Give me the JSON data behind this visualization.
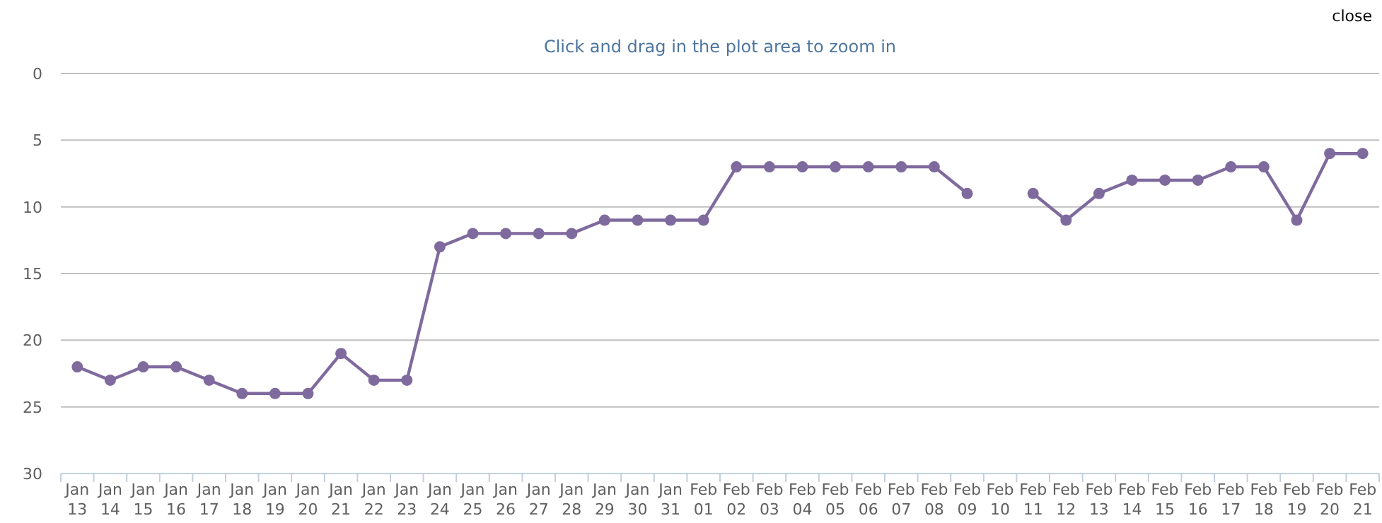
{
  "chart_data": {
    "type": "line",
    "subtitle": "Click and drag in the plot area to zoom in",
    "annotations": [
      "close"
    ],
    "categories": [
      "Jan 13",
      "Jan 14",
      "Jan 15",
      "Jan 16",
      "Jan 17",
      "Jan 18",
      "Jan 19",
      "Jan 20",
      "Jan 21",
      "Jan 22",
      "Jan 23",
      "Jan 24",
      "Jan 25",
      "Jan 26",
      "Jan 27",
      "Jan 28",
      "Jan 29",
      "Jan 30",
      "Jan 31",
      "Feb 01",
      "Feb 02",
      "Feb 03",
      "Feb 04",
      "Feb 05",
      "Feb 06",
      "Feb 07",
      "Feb 08",
      "Feb 09",
      "Feb 10",
      "Feb 11",
      "Feb 12",
      "Feb 13",
      "Feb 14",
      "Feb 15",
      "Feb 16",
      "Feb 17",
      "Feb 18",
      "Feb 19",
      "Feb 20",
      "Feb 21"
    ],
    "series": [
      {
        "color": "#7f6a9e",
        "values": [
          22,
          23,
          22,
          22,
          23,
          24,
          24,
          24,
          21,
          23,
          23,
          13,
          12,
          12,
          12,
          12,
          11,
          11,
          11,
          11,
          7,
          7,
          7,
          7,
          7,
          7,
          7,
          9,
          null,
          9,
          11,
          9,
          8,
          8,
          8,
          7,
          7,
          11,
          6,
          6
        ]
      }
    ],
    "ylim": [
      30,
      0
    ],
    "yticks": [
      0,
      5,
      10,
      15,
      20,
      25,
      30
    ],
    "grid": "y",
    "marker": "circle",
    "line_style": "solid"
  }
}
